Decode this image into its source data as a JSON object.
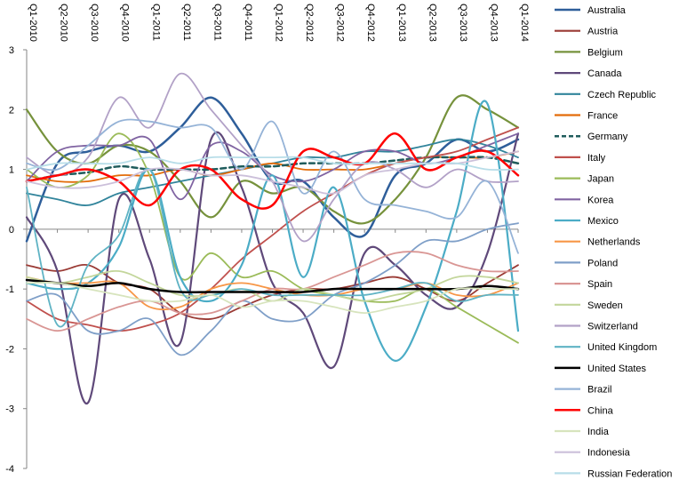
{
  "chart_data": {
    "type": "line",
    "title": "",
    "xlabel": "",
    "ylabel": "",
    "ylim": [
      -4,
      3
    ],
    "yticks": [
      -4,
      -3,
      -2,
      -1,
      0,
      1,
      2,
      3
    ],
    "grid": false,
    "legend_position": "right",
    "categories": [
      "Q1-2010",
      "Q2-2010",
      "Q3-2010",
      "Q4-2010",
      "Q1-2011",
      "Q2-2011",
      "Q3-2011",
      "Q4-2011",
      "Q1-2012",
      "Q2-2012",
      "Q3-2012",
      "Q4-2012",
      "Q1-2013",
      "Q2-2013",
      "Q3-2013",
      "Q4-2013",
      "Q1-2014"
    ],
    "series": [
      {
        "name": "Australia",
        "color": "#2E5E9A",
        "dash": false,
        "width": 2.5,
        "values": [
          -0.2,
          1.1,
          1.3,
          1.4,
          1.3,
          1.7,
          2.2,
          1.6,
          0.8,
          0.8,
          0.2,
          -0.1,
          0.9,
          1.1,
          1.5,
          1.3,
          1.5
        ]
      },
      {
        "name": "Austria",
        "color": "#9A3A34",
        "dash": false,
        "width": 1.8,
        "values": [
          -0.6,
          -0.7,
          -0.6,
          -0.9,
          -1.0,
          -1.4,
          -1.5,
          -1.3,
          -1.1,
          -1.0,
          -1.0,
          -0.9,
          -0.8,
          -1.0,
          -1.2,
          -0.9,
          -0.6
        ]
      },
      {
        "name": "Belgium",
        "color": "#76923C",
        "dash": false,
        "width": 2.2,
        "values": [
          2.0,
          1.3,
          1.1,
          1.4,
          1.3,
          0.8,
          0.2,
          0.8,
          0.6,
          0.7,
          0.3,
          0.1,
          0.5,
          1.2,
          2.2,
          2.0,
          1.7
        ]
      },
      {
        "name": "Canada",
        "color": "#5F497A",
        "dash": false,
        "width": 2.2,
        "values": [
          0.2,
          -0.7,
          -2.9,
          0.5,
          -0.5,
          -1.9,
          1.5,
          0.7,
          -0.9,
          -1.4,
          -2.3,
          -0.4,
          -0.6,
          -1.1,
          -1.3,
          -0.4,
          1.6
        ]
      },
      {
        "name": "Czech Republic",
        "color": "#31849B",
        "dash": false,
        "width": 1.8,
        "values": [
          0.6,
          0.5,
          0.4,
          0.6,
          0.7,
          0.8,
          0.9,
          1.0,
          1.1,
          1.2,
          1.2,
          1.3,
          1.3,
          1.4,
          1.5,
          1.4,
          1.2
        ]
      },
      {
        "name": "France",
        "color": "#E36C09",
        "dash": false,
        "width": 1.8,
        "values": [
          0.9,
          0.8,
          0.8,
          0.9,
          0.9,
          1.0,
          0.9,
          1.0,
          1.1,
          1.0,
          1.0,
          1.0,
          1.1,
          1.2,
          1.2,
          1.2,
          1.3
        ]
      },
      {
        "name": "Germany",
        "color": "#1F5C5C",
        "dash": true,
        "width": 2.5,
        "values": [
          0.8,
          0.9,
          0.95,
          1.05,
          1.0,
          1.0,
          1.0,
          1.05,
          1.05,
          1.1,
          1.1,
          1.1,
          1.15,
          1.2,
          1.2,
          1.2,
          1.1
        ]
      },
      {
        "name": "Italy",
        "color": "#C0504D",
        "dash": false,
        "width": 1.8,
        "values": [
          -1.2,
          -1.5,
          -1.6,
          -1.7,
          -1.6,
          -1.4,
          -1.0,
          -0.5,
          -0.1,
          0.3,
          0.6,
          0.9,
          1.1,
          1.2,
          1.3,
          1.5,
          1.7
        ]
      },
      {
        "name": "Japan",
        "color": "#9BBB59",
        "dash": false,
        "width": 1.8,
        "values": [
          1.0,
          0.7,
          0.9,
          1.6,
          0.9,
          -0.8,
          -0.4,
          -0.8,
          -0.7,
          -1.0,
          -1.1,
          -1.2,
          -1.2,
          -1.0,
          -1.3,
          -1.6,
          -1.9
        ]
      },
      {
        "name": "Korea",
        "color": "#8064A2",
        "dash": false,
        "width": 1.8,
        "values": [
          0.8,
          1.3,
          1.4,
          1.4,
          1.5,
          0.5,
          1.4,
          1.3,
          0.9,
          0.8,
          1.0,
          1.3,
          1.3,
          1.1,
          1.2,
          1.4,
          1.6
        ]
      },
      {
        "name": "Mexico",
        "color": "#4BACC6",
        "dash": false,
        "width": 2.2,
        "values": [
          -0.9,
          -1.0,
          -0.9,
          -0.3,
          1.0,
          -0.8,
          -1.2,
          -0.6,
          0.9,
          -0.8,
          0.7,
          -1.2,
          -2.2,
          -1.3,
          0.3,
          2.1,
          -1.7
        ]
      },
      {
        "name": "Netherlands",
        "color": "#F79646",
        "dash": false,
        "width": 1.8,
        "values": [
          -0.8,
          -0.9,
          -0.9,
          -0.9,
          -1.3,
          -1.3,
          -1.0,
          -0.9,
          -1.0,
          -1.1,
          -1.1,
          -1.0,
          -1.0,
          -0.9,
          -1.1,
          -1.1,
          -0.9
        ]
      },
      {
        "name": "Poland",
        "color": "#7F9FC8",
        "dash": false,
        "width": 1.8,
        "values": [
          -1.2,
          -1.1,
          -1.7,
          -1.7,
          -1.5,
          -2.1,
          -1.7,
          -1.2,
          -1.5,
          -1.5,
          -1.1,
          -0.9,
          -0.6,
          -0.2,
          -0.2,
          0.0,
          0.1
        ]
      },
      {
        "name": "Spain",
        "color": "#D99694",
        "dash": false,
        "width": 1.8,
        "values": [
          -1.5,
          -1.7,
          -1.5,
          -1.3,
          -1.2,
          -1.4,
          -1.4,
          -1.2,
          -1.0,
          -1.0,
          -0.8,
          -0.6,
          -0.4,
          -0.4,
          -0.6,
          -0.7,
          -0.7
        ]
      },
      {
        "name": "Sweden",
        "color": "#C3D69B",
        "dash": false,
        "width": 1.8,
        "values": [
          -0.8,
          -0.9,
          -0.8,
          -0.7,
          -0.9,
          -1.1,
          -1.1,
          -1.0,
          -1.2,
          -1.0,
          -1.1,
          -1.2,
          -1.1,
          -1.0,
          -0.8,
          -0.8,
          -0.9
        ]
      },
      {
        "name": "Switzerland",
        "color": "#B2A1C7",
        "dash": false,
        "width": 1.8,
        "values": [
          1.2,
          0.9,
          1.2,
          2.2,
          1.7,
          2.6,
          2.0,
          1.4,
          0.8,
          -0.2,
          0.5,
          1.1,
          1.0,
          0.7,
          1.0,
          0.8,
          0.8
        ]
      },
      {
        "name": "United Kingdom",
        "color": "#5FB3C4",
        "dash": false,
        "width": 1.8,
        "values": [
          0.7,
          -1.6,
          -0.6,
          -0.1,
          1.0,
          -1.0,
          -1.1,
          -1.0,
          -1.1,
          -1.1,
          -1.1,
          -1.1,
          -1.0,
          -0.9,
          -1.2,
          -1.1,
          -1.1
        ]
      },
      {
        "name": "United States",
        "color": "#000000",
        "dash": false,
        "width": 2.5,
        "values": [
          -0.85,
          -0.9,
          -0.95,
          -0.9,
          -1.0,
          -1.05,
          -1.05,
          -1.05,
          -1.05,
          -1.05,
          -1.0,
          -1.0,
          -1.0,
          -1.0,
          -1.0,
          -0.95,
          -1.0
        ]
      },
      {
        "name": "Brazil",
        "color": "#95B3D7",
        "dash": false,
        "width": 1.8,
        "values": [
          1.1,
          1.0,
          1.4,
          1.8,
          1.8,
          1.7,
          1.7,
          1.0,
          1.8,
          0.6,
          1.3,
          0.5,
          0.4,
          0.3,
          0.2,
          0.8,
          -0.4
        ]
      },
      {
        "name": "China",
        "color": "#FF0000",
        "dash": false,
        "width": 2.5,
        "values": [
          0.8,
          0.9,
          1.0,
          0.8,
          0.4,
          1.0,
          1.0,
          0.5,
          0.4,
          1.3,
          1.2,
          1.1,
          1.6,
          1.0,
          1.2,
          1.3,
          0.9
        ]
      },
      {
        "name": "India",
        "color": "#D7E4BD",
        "dash": false,
        "width": 1.8,
        "values": [
          -0.9,
          -0.9,
          -1.0,
          -1.1,
          -1.2,
          -1.2,
          -1.1,
          -1.3,
          -1.2,
          -1.2,
          -1.3,
          -1.4,
          -1.3,
          -1.2,
          -1.0,
          -1.0,
          -1.0
        ]
      },
      {
        "name": "Indonesia",
        "color": "#CCC0DA",
        "dash": false,
        "width": 1.8,
        "values": [
          0.8,
          0.7,
          0.7,
          0.8,
          1.0,
          1.0,
          0.9,
          0.9,
          0.8,
          0.7,
          0.6,
          0.9,
          1.0,
          1.1,
          1.1,
          1.2,
          1.3
        ]
      },
      {
        "name": "Russian Federation",
        "color": "#B7DDE8",
        "dash": false,
        "width": 1.8,
        "values": [
          1.0,
          1.1,
          1.1,
          1.1,
          1.2,
          1.1,
          1.2,
          1.2,
          1.2,
          1.2,
          1.1,
          1.1,
          1.1,
          1.1,
          1.1,
          1.0,
          1.0
        ]
      }
    ]
  }
}
